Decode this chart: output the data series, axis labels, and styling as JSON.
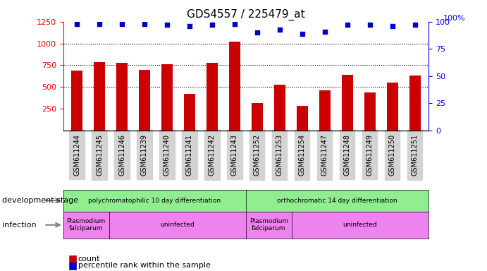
{
  "title": "GDS4557 / 225479_at",
  "samples": [
    "GSM611244",
    "GSM611245",
    "GSM611246",
    "GSM611239",
    "GSM611240",
    "GSM611241",
    "GSM611242",
    "GSM611243",
    "GSM611252",
    "GSM611253",
    "GSM611254",
    "GSM611247",
    "GSM611248",
    "GSM611249",
    "GSM611250",
    "GSM611251"
  ],
  "counts": [
    690,
    790,
    780,
    700,
    760,
    420,
    780,
    1020,
    315,
    530,
    285,
    465,
    640,
    435,
    555,
    635
  ],
  "percentiles": [
    98,
    98,
    98,
    98,
    97,
    96,
    97,
    98,
    90,
    93,
    89,
    91,
    97,
    97,
    96,
    97
  ],
  "ylim_left": [
    0,
    1250
  ],
  "ylim_right": [
    0,
    100
  ],
  "yticks_left": [
    250,
    500,
    750,
    1000,
    1250
  ],
  "yticks_right": [
    0,
    25,
    50,
    75,
    100
  ],
  "bar_color": "#cc0000",
  "dot_color": "#0000cc",
  "grid_color": "#000000",
  "bg_color": "#ffffff",
  "xticklabel_bg": "#d3d3d3",
  "dev_stage_groups": [
    {
      "label": "polychromatophilic 10 day differentiation",
      "start": 0,
      "end": 7,
      "color": "#90ee90"
    },
    {
      "label": "orthochromatic 14 day differentiation",
      "start": 8,
      "end": 15,
      "color": "#90ee90"
    }
  ],
  "infection_groups": [
    {
      "label": "Plasmodium\nfalciparum",
      "start": 0,
      "end": 1,
      "color": "#ee82ee"
    },
    {
      "label": "uninfected",
      "start": 2,
      "end": 7,
      "color": "#ee82ee"
    },
    {
      "label": "Plasmodium\nfalciparum",
      "start": 8,
      "end": 9,
      "color": "#ee82ee"
    },
    {
      "label": "uninfected",
      "start": 10,
      "end": 15,
      "color": "#ee82ee"
    }
  ],
  "dev_stage_label": "development stage",
  "infection_label": "infection",
  "legend_count_label": "count",
  "legend_percentile_label": "percentile rank within the sample"
}
